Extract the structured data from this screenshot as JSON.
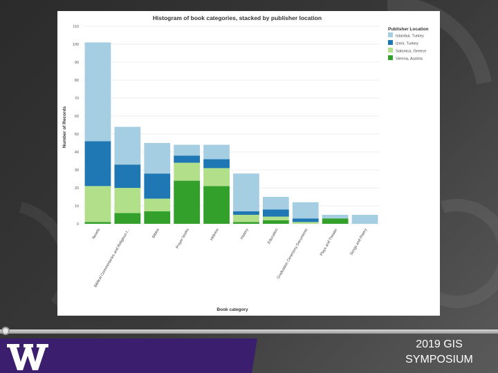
{
  "footer": {
    "line1": "2019 GIS",
    "line2": "SYMPOSIUM"
  },
  "colors": {
    "istanbul": "#a6cee3",
    "izmir": "#1f78b4",
    "salonica": "#b2df8a",
    "vienna": "#33a02c",
    "footer_band": "#3b1f6e"
  },
  "chart_data": {
    "type": "bar",
    "stacked": true,
    "title": "Histogram of book categories, stacked by publisher location",
    "xlabel": "Book category",
    "ylabel": "Number of Records",
    "ylim": [
      0,
      110
    ],
    "yticks": [
      0,
      10,
      20,
      30,
      40,
      50,
      60,
      70,
      80,
      90,
      100,
      110
    ],
    "legend_title": "Publisher Location",
    "legend_position": "top-right",
    "categories": [
      "Novels",
      "Biblical Commentaries and Religious t...",
      "Bibles",
      "Prayer books",
      "Hebrew",
      "History",
      "Education",
      "Graduation Ceremony Documents",
      "Plays and Theater",
      "Songs and Poetry"
    ],
    "series": [
      {
        "name": "Vienna, Austria",
        "values": [
          1,
          6,
          7,
          24,
          21,
          1,
          2,
          0,
          3,
          0
        ]
      },
      {
        "name": "Salonica, Greece",
        "values": [
          20,
          14,
          7,
          10,
          10,
          4,
          2,
          1,
          0,
          0
        ]
      },
      {
        "name": "Izmir, Turkey",
        "values": [
          25,
          13,
          14,
          4,
          5,
          2,
          4,
          2,
          0,
          0
        ]
      },
      {
        "name": "Istanbul, Turkey",
        "values": [
          55,
          21,
          17,
          6,
          8,
          21,
          7,
          9,
          2,
          5
        ]
      }
    ]
  }
}
